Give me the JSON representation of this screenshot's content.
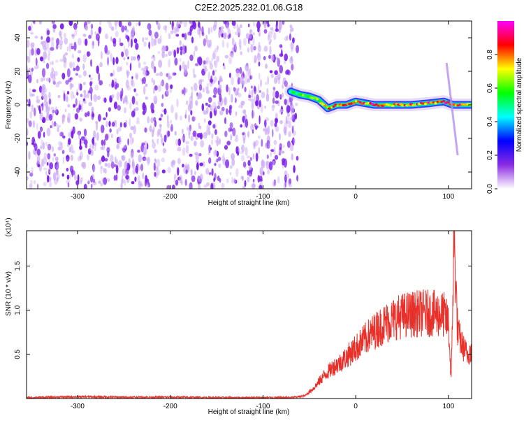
{
  "title": "C2E2.2025.232.01.06.G18",
  "colors": {
    "snr_line": "#e8302a",
    "spectrogram_noise": "#7a1fe6",
    "background": "#ffffff"
  },
  "chart_data": [
    {
      "type": "heatmap",
      "title": "C2E2.2025.232.01.06.G18",
      "xlabel": "Height of straight line (km)",
      "ylabel": "Frequency (Hz)",
      "xlim": [
        -355,
        125
      ],
      "ylim": [
        -50,
        50
      ],
      "x_ticks": [
        -300,
        -200,
        -100,
        0,
        100
      ],
      "x_tick_labels": [
        "-300",
        "-200",
        "-100",
        "0",
        "100"
      ],
      "y_ticks": [
        -40,
        -20,
        0,
        20,
        40
      ],
      "y_tick_labels": [
        "-40",
        "-20",
        "0",
        "20",
        "40"
      ],
      "grid": false,
      "colorbar": {
        "label": "Normalized spectral amplitude",
        "range": [
          0,
          1
        ],
        "ticks": [
          0.0,
          0.2,
          0.4,
          0.6,
          0.8
        ],
        "tick_labels": [
          "0.0",
          "0.2",
          "0.4",
          "0.6",
          "0.8"
        ],
        "colormap": [
          "#ffffff",
          "#8a2be2",
          "#0000ff",
          "#00ffff",
          "#00ff00",
          "#ffff00",
          "#ff0000",
          "#ff00ff"
        ]
      },
      "noise_region": {
        "x_start": -355,
        "x_end": -65,
        "amplitude": 0.15
      },
      "signal_ridge": {
        "x": [
          -70,
          -60,
          -50,
          -40,
          -30,
          -20,
          -10,
          0,
          20,
          40,
          60,
          80,
          95,
          105,
          115,
          125
        ],
        "frequency": [
          8,
          6,
          5,
          3,
          -2,
          0,
          0,
          2,
          0,
          0,
          0,
          1,
          2,
          0,
          0,
          0
        ],
        "amplitude": [
          0.5,
          0.6,
          0.7,
          0.75,
          0.8,
          0.85,
          0.9,
          0.9,
          0.9,
          0.85,
          0.85,
          0.9,
          0.9,
          0.95,
          0.9,
          0.85
        ]
      },
      "secondary_streak": {
        "x": [
          98,
          110
        ],
        "frequency": [
          25,
          -30
        ]
      }
    },
    {
      "type": "line",
      "xlabel": "Height of straight line (km)",
      "ylabel": "SNR (10 * v/v)",
      "y_multiplier": "(x10⁴)",
      "xlim": [
        -355,
        125
      ],
      "ylim": [
        0,
        1.9
      ],
      "x_ticks": [
        -300,
        -200,
        -100,
        0,
        100
      ],
      "x_tick_labels": [
        "-300",
        "-200",
        "-100",
        "0",
        "100"
      ],
      "y_ticks": [
        0.5,
        1.0,
        1.5
      ],
      "y_tick_labels": [
        "0.5",
        "1.0",
        "1.5"
      ],
      "grid": false,
      "series": [
        {
          "color": "#e8302a",
          "x": [
            -355,
            -300,
            -250,
            -200,
            -150,
            -100,
            -70,
            -55,
            -45,
            -35,
            -25,
            -15,
            -5,
            5,
            15,
            25,
            35,
            45,
            55,
            65,
            75,
            85,
            95,
            100,
            103,
            106,
            110,
            115,
            120,
            125
          ],
          "y": [
            0.01,
            0.02,
            0.015,
            0.015,
            0.01,
            0.01,
            0.01,
            0.03,
            0.12,
            0.25,
            0.35,
            0.42,
            0.52,
            0.62,
            0.72,
            0.8,
            0.87,
            0.92,
            0.95,
            0.96,
            0.97,
            0.96,
            0.95,
            0.85,
            0.2,
            1.85,
            0.75,
            0.6,
            0.5,
            0.55
          ]
        }
      ]
    }
  ]
}
